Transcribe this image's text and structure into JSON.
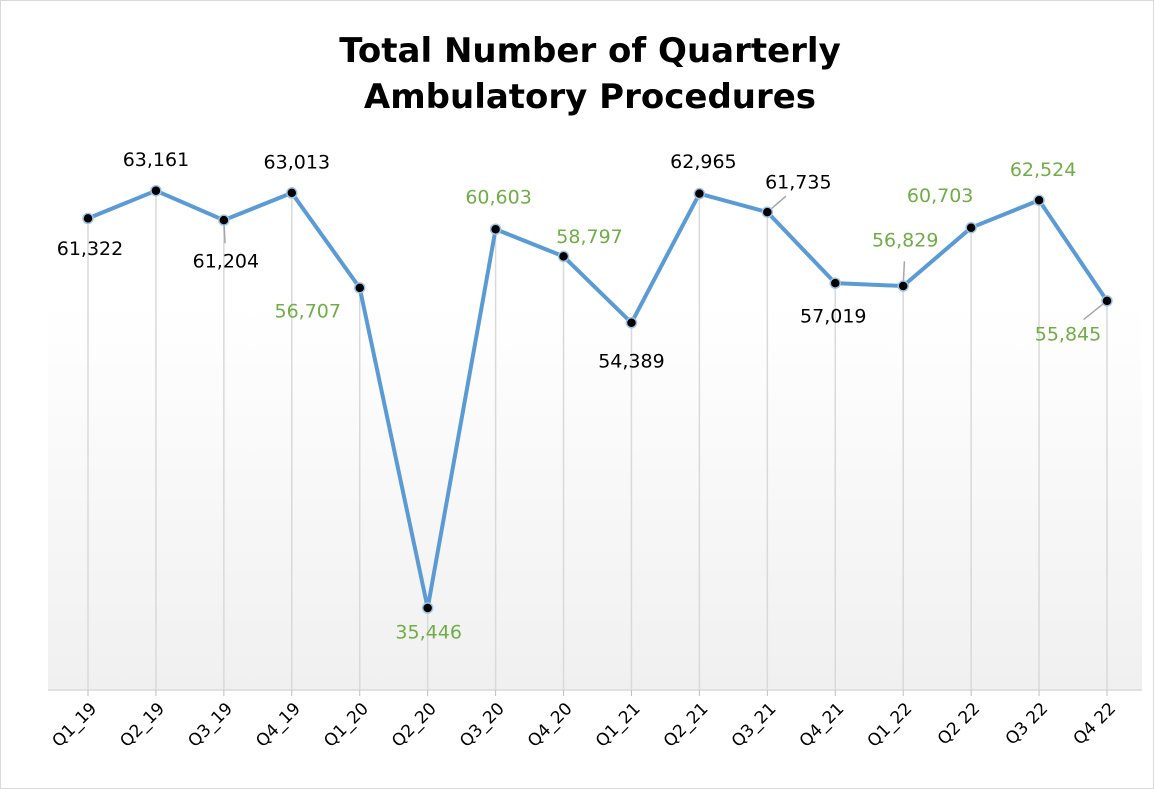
{
  "chart_data": {
    "type": "line",
    "title": "Total Number of Quarterly Ambulatory Procedures",
    "categories": [
      "Q1_19",
      "Q2_19",
      "Q3_19",
      "Q4_19",
      "Q1_20",
      "Q2_20",
      "Q3_20",
      "Q4_20",
      "Q1_21",
      "Q2_21",
      "Q3_21",
      "Q4_21",
      "Q1_22",
      "Q2 22",
      "Q3 22",
      "Q4 22"
    ],
    "series": [
      {
        "name": "Total Number of Quarterly Ambulatory Procedures",
        "color": "#5b9bd5",
        "values": [
          61322,
          63161,
          61204,
          63013,
          56707,
          35446,
          60603,
          58797,
          54389,
          62965,
          61735,
          57019,
          56829,
          60703,
          62524,
          55845
        ],
        "value_labels": [
          "61,322",
          "63,161",
          "61,204",
          "63,013",
          "56,707",
          "35,446",
          "60,603",
          "58,797",
          "54,389",
          "62,965",
          "61,735",
          "57,019",
          "56,829",
          "60,703",
          "62,524",
          "55,845"
        ],
        "label_colors": [
          "#000000",
          "#000000",
          "#000000",
          "#000000",
          "#70ad47",
          "#70ad47",
          "#70ad47",
          "#70ad47",
          "#000000",
          "#000000",
          "#000000",
          "#000000",
          "#70ad47",
          "#70ad47",
          "#70ad47",
          "#70ad47"
        ]
      }
    ],
    "ylim": [
      30000,
      65000
    ]
  }
}
